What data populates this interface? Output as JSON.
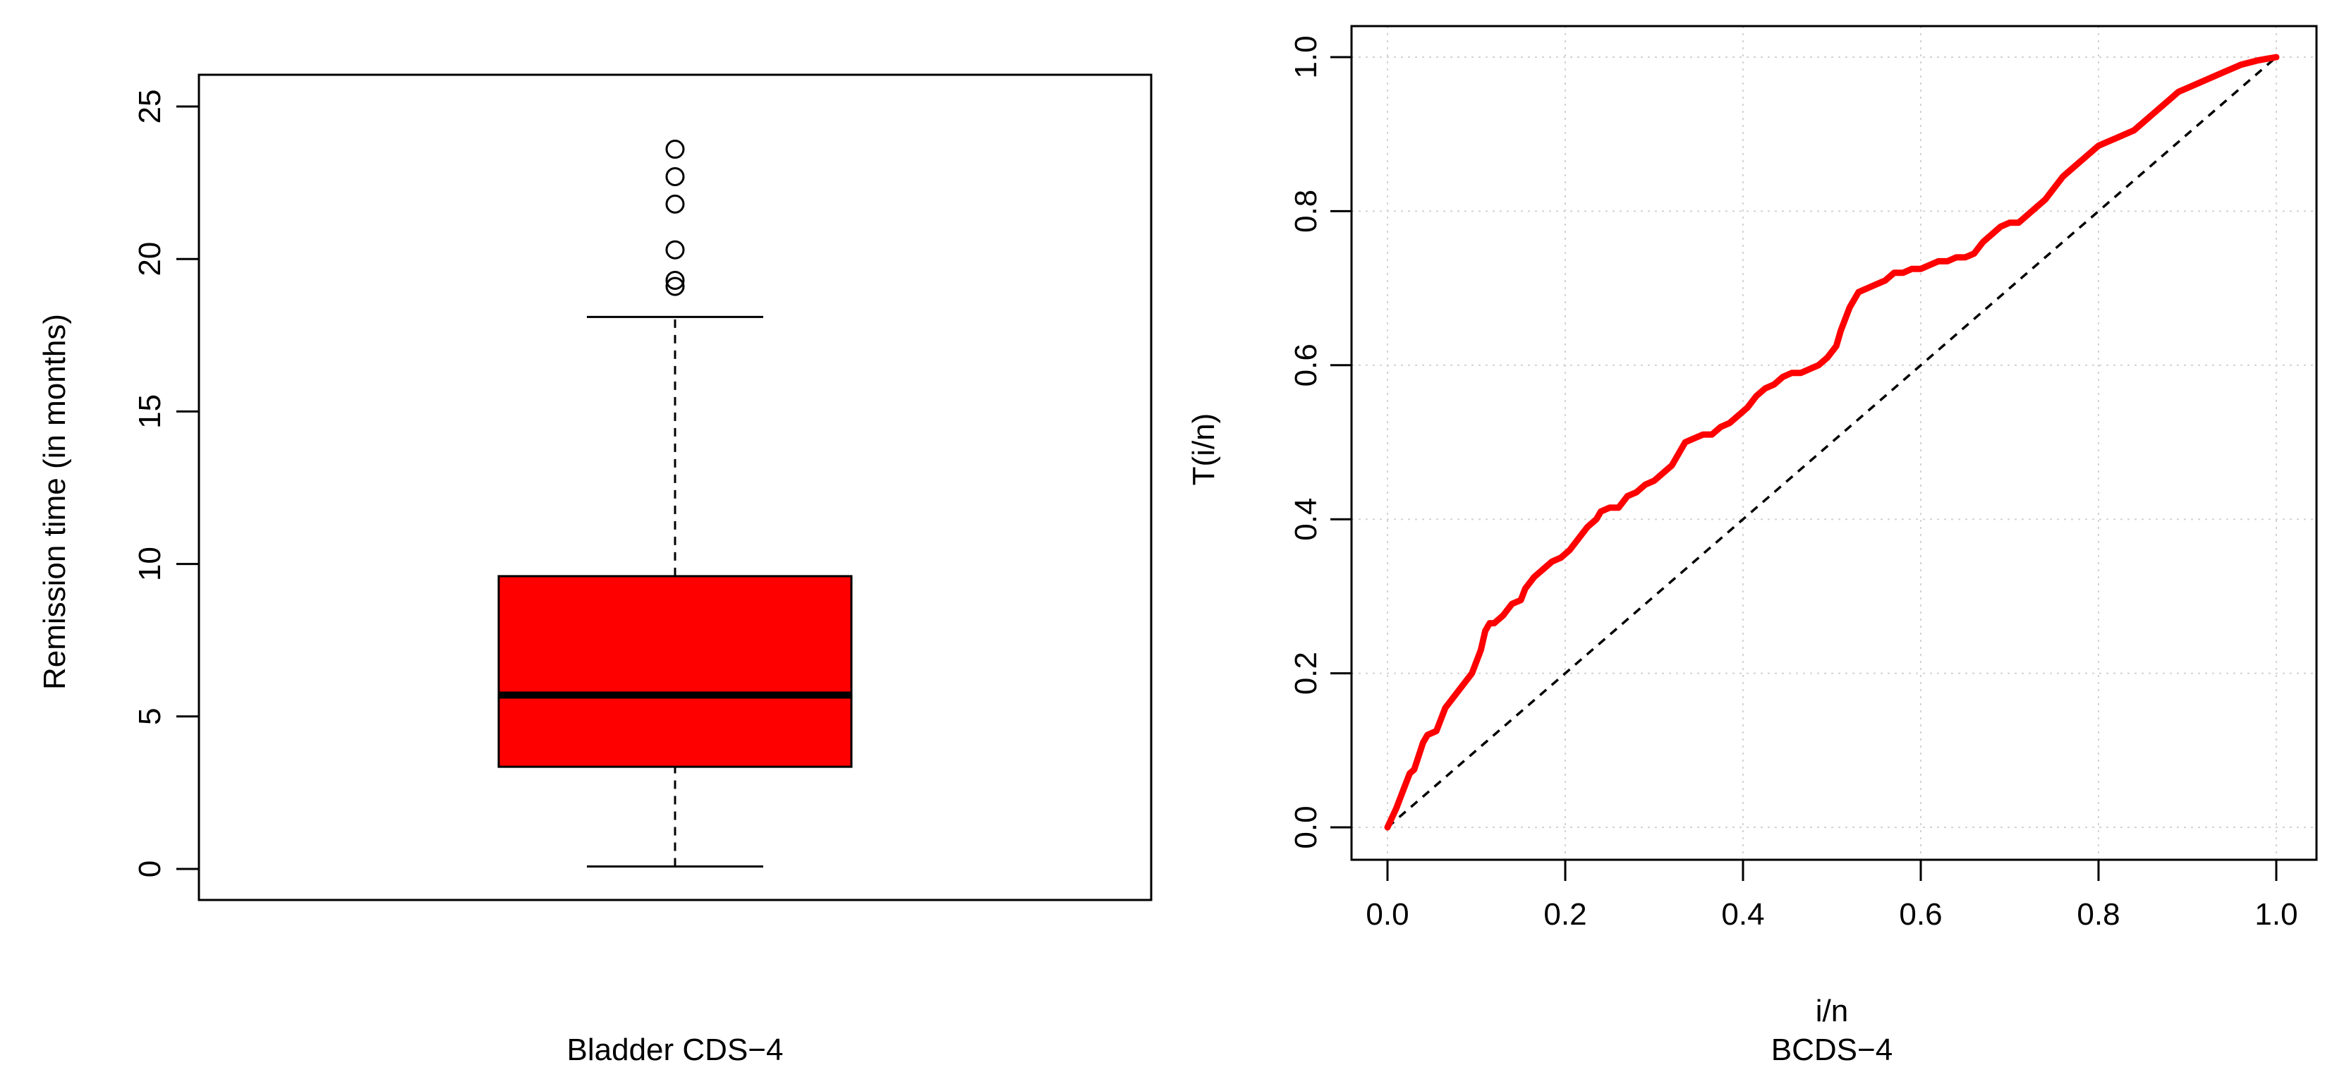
{
  "colors": {
    "box_fill": "#ff0000",
    "ti_line": "#ff0000",
    "grid": "#d3d3d3",
    "ink": "#000000"
  },
  "chart_data": [
    {
      "type": "box",
      "xlabel": "Bladder CDS−4",
      "ylabel": "Remission time (in months)",
      "ylim": [
        0,
        26
      ],
      "yticks": [
        0,
        5,
        10,
        15,
        20,
        25
      ],
      "ytick_labels": [
        "0",
        "5",
        "10",
        "15",
        "20",
        "25"
      ],
      "grid": false,
      "box": {
        "whisker_low": 0.08,
        "q1": 3.35,
        "median": 5.7,
        "q3": 9.6,
        "whisker_high": 18.1,
        "outliers": [
          19.1,
          19.3,
          20.3,
          21.8,
          22.7,
          23.6
        ]
      }
    },
    {
      "type": "line",
      "xlabel": "i/n",
      "subtitle": "BCDS−4",
      "ylabel": "T(i/n)",
      "xlim": [
        0,
        1
      ],
      "ylim": [
        0,
        1
      ],
      "xticks": [
        0.0,
        0.2,
        0.4,
        0.6,
        0.8,
        1.0
      ],
      "xtick_labels": [
        "0.0",
        "0.2",
        "0.4",
        "0.6",
        "0.8",
        "1.0"
      ],
      "yticks": [
        0.0,
        0.2,
        0.4,
        0.6,
        0.8,
        1.0
      ],
      "ytick_labels": [
        "0.0",
        "0.2",
        "0.4",
        "0.6",
        "0.8",
        "1.0"
      ],
      "grid": true,
      "series": [
        {
          "x": [
            0,
            0.01,
            0.02,
            0.025,
            0.03,
            0.04,
            0.045,
            0.055,
            0.065,
            0.075,
            0.085,
            0.095,
            0.105,
            0.11,
            0.115,
            0.12,
            0.13,
            0.14,
            0.15,
            0.155,
            0.165,
            0.175,
            0.185,
            0.195,
            0.205,
            0.215,
            0.225,
            0.235,
            0.24,
            0.25,
            0.26,
            0.27,
            0.28,
            0.29,
            0.3,
            0.31,
            0.32,
            0.33,
            0.335,
            0.345,
            0.355,
            0.365,
            0.375,
            0.385,
            0.395,
            0.405,
            0.415,
            0.425,
            0.435,
            0.445,
            0.455,
            0.465,
            0.475,
            0.485,
            0.495,
            0.505,
            0.51,
            0.52,
            0.53,
            0.54,
            0.55,
            0.56,
            0.57,
            0.58,
            0.59,
            0.6,
            0.61,
            0.62,
            0.63,
            0.64,
            0.65,
            0.66,
            0.67,
            0.68,
            0.69,
            0.7,
            0.71,
            0.72,
            0.73,
            0.74,
            0.75,
            0.76,
            0.77,
            0.78,
            0.79,
            0.8,
            0.81,
            0.82,
            0.83,
            0.84,
            0.85,
            0.86,
            0.87,
            0.88,
            0.89,
            0.9,
            0.91,
            0.92,
            0.93,
            0.94,
            0.95,
            0.96,
            0.97,
            0.98,
            0.99,
            1.0
          ],
          "y": [
            0,
            0.025,
            0.055,
            0.07,
            0.075,
            0.11,
            0.12,
            0.125,
            0.155,
            0.17,
            0.185,
            0.2,
            0.23,
            0.255,
            0.265,
            0.265,
            0.275,
            0.29,
            0.295,
            0.31,
            0.325,
            0.335,
            0.345,
            0.35,
            0.36,
            0.375,
            0.39,
            0.4,
            0.41,
            0.415,
            0.415,
            0.43,
            0.435,
            0.445,
            0.45,
            0.46,
            0.47,
            0.49,
            0.5,
            0.505,
            0.51,
            0.51,
            0.52,
            0.525,
            0.535,
            0.545,
            0.56,
            0.57,
            0.575,
            0.585,
            0.59,
            0.59,
            0.595,
            0.6,
            0.61,
            0.625,
            0.645,
            0.675,
            0.695,
            0.7,
            0.705,
            0.71,
            0.72,
            0.72,
            0.725,
            0.725,
            0.73,
            0.735,
            0.735,
            0.74,
            0.74,
            0.745,
            0.76,
            0.77,
            0.78,
            0.785,
            0.785,
            0.795,
            0.805,
            0.815,
            0.83,
            0.845,
            0.855,
            0.865,
            0.875,
            0.885,
            0.89,
            0.895,
            0.9,
            0.905,
            0.915,
            0.925,
            0.935,
            0.945,
            0.955,
            0.96,
            0.965,
            0.97,
            0.975,
            0.98,
            0.985,
            0.99,
            0.993,
            0.996,
            0.998,
            1.0
          ]
        }
      ],
      "reference_line": {
        "x": [
          0,
          1
        ],
        "y": [
          0,
          1
        ],
        "style": "dashed"
      }
    }
  ]
}
